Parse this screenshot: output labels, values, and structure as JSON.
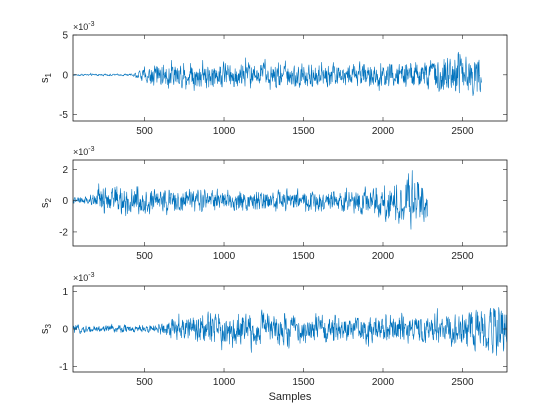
{
  "chart_data": [
    {
      "type": "line",
      "ylabel": "s",
      "ylabel_sub": "1",
      "exponent_label": "×10",
      "exponent_sup": "-3",
      "xlim": [
        50,
        2780
      ],
      "ylim": [
        -5.8,
        5
      ],
      "xticks": [
        500,
        1000,
        1500,
        2000,
        2500
      ],
      "xtick_labels": [
        "500",
        "1000",
        "1500",
        "2000",
        "2500"
      ],
      "yticks": [
        -5,
        0,
        5
      ],
      "ytick_labels": [
        "-5",
        "0",
        "5"
      ],
      "color": "#0072bd",
      "series": [
        {
          "x_start": 50,
          "x_end": 2620,
          "envelope": [
            {
              "x": 50,
              "amp": 0.15
            },
            {
              "x": 420,
              "amp": 0.2
            },
            {
              "x": 470,
              "amp": 1.0
            },
            {
              "x": 550,
              "amp": 2.0
            },
            {
              "x": 700,
              "amp": 2.8
            },
            {
              "x": 900,
              "amp": 2.4
            },
            {
              "x": 1200,
              "amp": 2.5
            },
            {
              "x": 1600,
              "amp": 2.3
            },
            {
              "x": 2000,
              "amp": 2.2
            },
            {
              "x": 2300,
              "amp": 2.6
            },
            {
              "x": 2500,
              "amp": 4.5
            },
            {
              "x": 2620,
              "amp": 3.5
            }
          ]
        }
      ]
    },
    {
      "type": "line",
      "ylabel": "s",
      "ylabel_sub": "2",
      "exponent_label": "×10",
      "exponent_sup": "-3",
      "xlim": [
        50,
        2780
      ],
      "ylim": [
        -2.9,
        2.6
      ],
      "xticks": [
        500,
        1000,
        1500,
        2000,
        2500
      ],
      "xtick_labels": [
        "500",
        "1000",
        "1500",
        "2000",
        "2500"
      ],
      "yticks": [
        -2,
        0,
        2
      ],
      "ytick_labels": [
        "-2",
        "0",
        "2"
      ],
      "color": "#0072bd",
      "series": [
        {
          "x_start": 50,
          "x_end": 2280,
          "envelope": [
            {
              "x": 50,
              "amp": 0.3
            },
            {
              "x": 150,
              "amp": 0.5
            },
            {
              "x": 250,
              "amp": 1.3
            },
            {
              "x": 500,
              "amp": 1.2
            },
            {
              "x": 800,
              "amp": 1.0
            },
            {
              "x": 1200,
              "amp": 0.9
            },
            {
              "x": 1600,
              "amp": 1.0
            },
            {
              "x": 1900,
              "amp": 1.1
            },
            {
              "x": 2100,
              "amp": 2.0
            },
            {
              "x": 2200,
              "amp": 2.5
            },
            {
              "x": 2280,
              "amp": 1.5
            }
          ]
        }
      ]
    },
    {
      "type": "line",
      "ylabel": "s",
      "ylabel_sub": "3",
      "exponent_label": "×10",
      "exponent_sup": "-3",
      "xlim": [
        50,
        2780
      ],
      "ylim": [
        -1.15,
        1.15
      ],
      "xticks": [
        500,
        1000,
        1500,
        2000,
        2500
      ],
      "xtick_labels": [
        "500",
        "1000",
        "1500",
        "2000",
        "2500"
      ],
      "yticks": [
        -1,
        0,
        1
      ],
      "ytick_labels": [
        "-1",
        "0",
        "1"
      ],
      "color": "#0072bd",
      "xlabel": "Samples",
      "series": [
        {
          "x_start": 50,
          "x_end": 2780,
          "envelope": [
            {
              "x": 50,
              "amp": 0.15
            },
            {
              "x": 550,
              "amp": 0.15
            },
            {
              "x": 700,
              "amp": 0.45
            },
            {
              "x": 900,
              "amp": 0.6
            },
            {
              "x": 1000,
              "amp": 0.8
            },
            {
              "x": 1300,
              "amp": 0.6
            },
            {
              "x": 1700,
              "amp": 0.5
            },
            {
              "x": 2100,
              "amp": 0.5
            },
            {
              "x": 2400,
              "amp": 0.6
            },
            {
              "x": 2650,
              "amp": 0.9
            },
            {
              "x": 2780,
              "amp": 1.0
            }
          ]
        }
      ]
    }
  ]
}
